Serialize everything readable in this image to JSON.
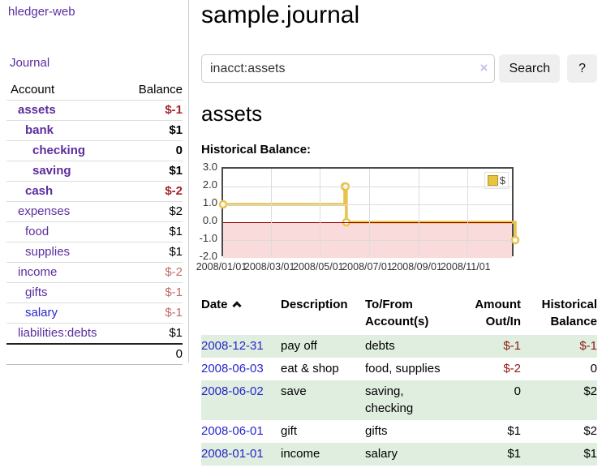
{
  "app": {
    "title": "hledger-web"
  },
  "sidebar": {
    "journal_link": "Journal",
    "accounts_header": {
      "account": "Account",
      "balance": "Balance"
    },
    "accounts": [
      {
        "name": "assets",
        "depth": 0,
        "bold": true,
        "balance": "$-1",
        "negative": true
      },
      {
        "name": "bank",
        "depth": 1,
        "bold": true,
        "balance": "$1",
        "negative": false
      },
      {
        "name": "checking",
        "depth": 2,
        "bold": true,
        "balance": "0",
        "negative": false
      },
      {
        "name": "saving",
        "depth": 2,
        "bold": true,
        "balance": "$1",
        "negative": false
      },
      {
        "name": "cash",
        "depth": 1,
        "bold": true,
        "balance": "$-2",
        "negative": true
      },
      {
        "name": "expenses",
        "depth": 0,
        "bold": false,
        "balance": "$2",
        "negative": false
      },
      {
        "name": "food",
        "depth": 1,
        "bold": false,
        "balance": "$1",
        "negative": false
      },
      {
        "name": "supplies",
        "depth": 1,
        "bold": false,
        "balance": "$1",
        "negative": false
      },
      {
        "name": "income",
        "depth": 0,
        "bold": false,
        "balance": "$-2",
        "negative": true
      },
      {
        "name": "gifts",
        "depth": 1,
        "bold": false,
        "balance": "$-1",
        "negative": true
      },
      {
        "name": "salary",
        "depth": 1,
        "bold": false,
        "balance": "$-1",
        "negative": true,
        "link_color": "blue"
      },
      {
        "name": "liabilities:debts",
        "depth": 0,
        "bold": false,
        "balance": "$1",
        "negative": false
      }
    ],
    "total": "0"
  },
  "header": {
    "title": "sample.journal"
  },
  "search": {
    "value": "inacct:assets",
    "clear_icon": "×",
    "button_label": "Search",
    "help_label": "?"
  },
  "account_page": {
    "heading": "assets",
    "chart_label": "Historical Balance:"
  },
  "chart_data": {
    "type": "line",
    "step": true,
    "series": [
      {
        "name": "$",
        "points": [
          [
            "2008-01-01",
            1.0
          ],
          [
            "2008-06-01",
            2.0
          ],
          [
            "2008-06-02",
            2.0
          ],
          [
            "2008-06-03",
            0.0
          ],
          [
            "2008-12-31",
            -1.0
          ]
        ]
      }
    ],
    "xlim": [
      "2008-01-01",
      "2008-12-31"
    ],
    "ylim": [
      -2.0,
      3.0
    ],
    "yticks": [
      "3.0",
      "2.0",
      "1.0",
      "0.0",
      "-1.0",
      "-2.0"
    ],
    "xticks": [
      "2008/01/01",
      "2008/03/01",
      "2008/05/01",
      "2008/07/01",
      "2008/09/01",
      "2008/11/01"
    ],
    "legend": {
      "label": "$",
      "position": "top-right"
    },
    "grid": true,
    "line_color": "#e7c34b",
    "negative_region_color": "#fadbdb",
    "zero_line_color": "#990000"
  },
  "transactions": {
    "columns": [
      "Date",
      "Description",
      "To/From Account(s)",
      "Amount Out/In",
      "Historical Balance"
    ],
    "sort": {
      "column": "Date",
      "direction": "asc"
    },
    "rows": [
      {
        "date": "2008-12-31",
        "description": "pay off",
        "accounts": "debts",
        "amount": "$-1",
        "historical": "$-1"
      },
      {
        "date": "2008-06-03",
        "description": "eat & shop",
        "accounts": "food, supplies",
        "amount": "$-2",
        "historical": "0"
      },
      {
        "date": "2008-06-02",
        "description": "save",
        "accounts": "saving,\nchecking",
        "amount": "0",
        "historical": "$2"
      },
      {
        "date": "2008-06-01",
        "description": "gift",
        "accounts": "gifts",
        "amount": "$1",
        "historical": "$2"
      },
      {
        "date": "2008-01-01",
        "description": "income",
        "accounts": "salary",
        "amount": "$1",
        "historical": "$1"
      }
    ]
  },
  "colors": {
    "link_purple": "#5b2d9e",
    "link_blue": "#2727cc",
    "negative_red": "#a3232d",
    "negative_red_light": "#c06a6a",
    "table_negative_red": "#8f1a10",
    "row_green": "#dfeedf",
    "chart_gold": "#e7c34b",
    "chart_pink": "#fadbdb"
  }
}
